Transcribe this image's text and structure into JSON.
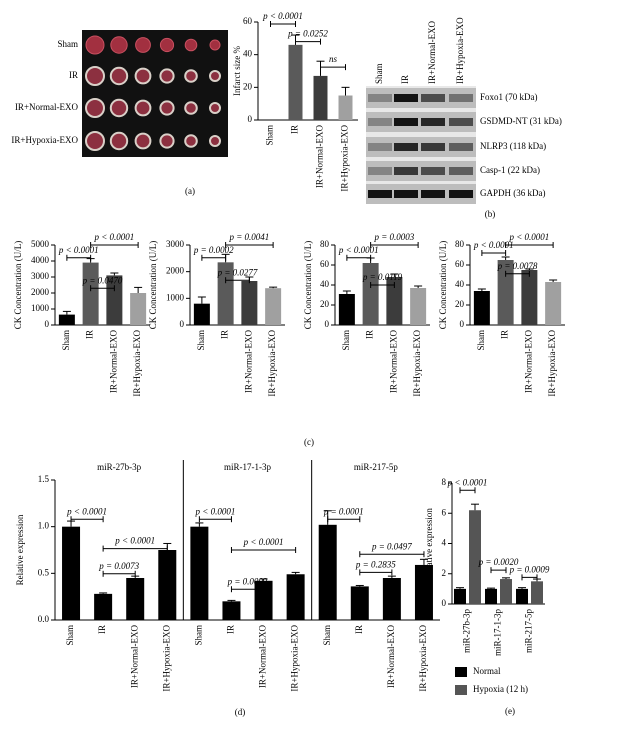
{
  "panel_labels": [
    "(a)",
    "(b)",
    "(c)",
    "(d)",
    "(e)"
  ],
  "heart_image": {
    "rows": [
      "Sham",
      "IR",
      "IR+Normal-EXO",
      "IR+Hypoxia-EXO"
    ]
  },
  "western_blot": {
    "lanes": [
      "Sham",
      "IR",
      "IR+Normal-EXO",
      "IR+Hypoxia-EXO"
    ],
    "bands": [
      "Foxo1 (70 kDa)",
      "GSDMD-NT (31 kDa)",
      "NLRP3 (118 kDa)",
      "Casp-1 (22 kDa)",
      "GAPDH (36 kDa)"
    ]
  },
  "chart_data": [
    {
      "type": "bar",
      "ylabel": "Infarct size %",
      "categories": [
        "Sham",
        "IR",
        "IR+Normal-EXO",
        "IR+Hypoxia-EXO"
      ],
      "values": [
        0,
        46,
        27,
        15
      ],
      "errors": [
        0,
        6,
        9,
        5
      ],
      "colors": [
        "#000000",
        "#5a5a5a",
        "#3c3c3c",
        "#a0a0a0"
      ],
      "ylim": [
        0,
        60
      ],
      "yticks": [
        0,
        20,
        40,
        60
      ],
      "annotations": [
        "p < 0.0001",
        "p = 0.0252",
        "ns"
      ]
    },
    {
      "type": "bar",
      "ylabel": "CK Concentration (U/L)",
      "categories": [
        "Sham",
        "IR",
        "IR+Normal-EXO",
        "IR+Hypoxia-EXO"
      ],
      "values": [
        650,
        3900,
        3100,
        2000
      ],
      "errors": [
        200,
        250,
        150,
        350
      ],
      "colors": [
        "#000000",
        "#5a5a5a",
        "#3c3c3c",
        "#a0a0a0"
      ],
      "ylim": [
        0,
        5000
      ],
      "yticks": [
        0,
        1000,
        2000,
        3000,
        4000,
        5000
      ],
      "annotations": [
        "p < 0.0001",
        "p = 0.0470",
        "p < 0.0001"
      ]
    },
    {
      "type": "bar",
      "ylabel": "CK Concentration (U/L)",
      "categories": [
        "Sham",
        "IR",
        "IR+Normal-EXO",
        "IR+Hypoxia-EXO"
      ],
      "values": [
        800,
        2350,
        1650,
        1380
      ],
      "errors": [
        250,
        300,
        150,
        40
      ],
      "colors": [
        "#000000",
        "#5a5a5a",
        "#3c3c3c",
        "#a0a0a0"
      ],
      "ylim": [
        0,
        3000
      ],
      "yticks": [
        0,
        1000,
        2000,
        3000
      ],
      "annotations": [
        "p = 0.0002",
        "p = 0.0277",
        "p = 0.0041"
      ]
    },
    {
      "type": "bar",
      "ylabel": "CK Concentration (U/L)",
      "categories": [
        "Sham",
        "IR",
        "IR+Normal-EXO",
        "IR+Hypoxia-EXO"
      ],
      "values": [
        31,
        62,
        48,
        37
      ],
      "errors": [
        3,
        5,
        3,
        2
      ],
      "colors": [
        "#000000",
        "#5a5a5a",
        "#3c3c3c",
        "#a0a0a0"
      ],
      "ylim": [
        0,
        80
      ],
      "yticks": [
        0,
        20,
        40,
        60,
        80
      ],
      "annotations": [
        "p < 0.0001",
        "p = 0.0119",
        "p = 0.0003"
      ]
    },
    {
      "type": "bar",
      "ylabel": "CK Concentration (U/L)",
      "categories": [
        "Sham",
        "IR",
        "IR+Normal-EXO",
        "IR+Hypoxia-EXO"
      ],
      "values": [
        34,
        65,
        55,
        43
      ],
      "errors": [
        2,
        3,
        1,
        2
      ],
      "colors": [
        "#000000",
        "#5a5a5a",
        "#3c3c3c",
        "#a0a0a0"
      ],
      "ylim": [
        0,
        80
      ],
      "yticks": [
        0,
        20,
        40,
        60,
        80
      ],
      "annotations": [
        "p < 0.0001",
        "p = 0.0078",
        "p < 0.0001"
      ]
    },
    {
      "type": "panels",
      "ylabel": "Relative expression",
      "categories": [
        "Sham",
        "IR",
        "IR+Normal-EXO",
        "IR+Hypoxia-EXO"
      ],
      "color": "#000000",
      "ylim": [
        0,
        1.5
      ],
      "yticks": [
        {
          "value": 0,
          "label": "0.0"
        },
        0.5,
        {
          "value": 1,
          "label": "1.0"
        },
        1.5
      ],
      "panels": [
        {
          "title": "miR-27b-3p",
          "values": [
            1.0,
            0.28,
            0.45,
            0.75
          ],
          "errors": [
            0.06,
            0.01,
            0.02,
            0.07
          ],
          "annotations": [
            "p < 0.0001",
            "p = 0.0073",
            "p < 0.0001"
          ]
        },
        {
          "title": "miR-17-1-3p",
          "values": [
            1.0,
            0.2,
            0.42,
            0.49
          ],
          "errors": [
            0.04,
            0.01,
            0.02,
            0.02
          ],
          "annotations": [
            "p < 0.0001",
            "p = 0.0002",
            "p < 0.0001"
          ]
        },
        {
          "title": "miR-217-5p",
          "values": [
            1.02,
            0.36,
            0.45,
            0.59
          ],
          "errors": [
            0.15,
            0.01,
            0.02,
            0.06
          ],
          "annotations": [
            "p = 0.0001",
            "p = 0.2835",
            "p = 0.0497"
          ]
        }
      ]
    },
    {
      "type": "grouped",
      "ylabel": "Relative expression",
      "categories": [
        "miR-27b-3p",
        "miR-17-1-3p",
        "miR-217-5p"
      ],
      "series": [
        {
          "name": "Normal",
          "color": "#000000",
          "values": [
            1.0,
            1.0,
            1.0
          ],
          "errors": [
            0.08,
            0.05,
            0.08
          ]
        },
        {
          "name": "Hypoxia (12 h)",
          "color": "#555555",
          "values": [
            6.2,
            1.65,
            1.5
          ],
          "errors": [
            0.4,
            0.08,
            0.15
          ]
        }
      ],
      "ylim": [
        0,
        8
      ],
      "yticks": [
        0,
        2,
        4,
        6,
        8
      ],
      "annotations": [
        "p < 0.0001",
        "p = 0.0020",
        "p = 0.0009"
      ]
    }
  ]
}
